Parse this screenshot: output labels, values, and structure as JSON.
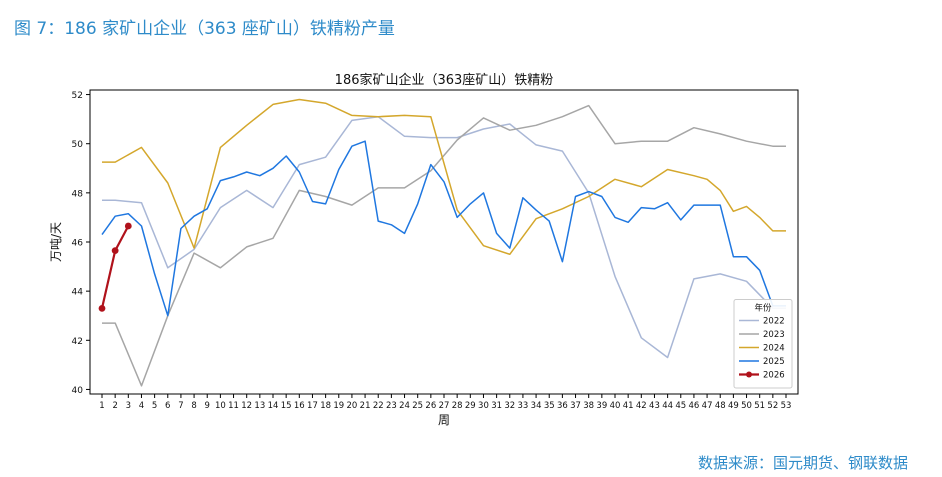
{
  "figure_title": "图 7：186 家矿山企业（363 座矿山）铁精粉产量",
  "source": "数据来源：国元期货、钢联数据",
  "chart_data": {
    "type": "line",
    "title": "186家矿山企业（363座矿山）铁精粉",
    "xlabel": "周",
    "ylabel": "万吨/天",
    "xlim": [
      1,
      53
    ],
    "ylim": [
      40,
      52
    ],
    "yticks": [
      40,
      42,
      44,
      46,
      48,
      50,
      52
    ],
    "xticks": [
      1,
      2,
      3,
      4,
      5,
      6,
      7,
      8,
      9,
      10,
      11,
      12,
      13,
      14,
      15,
      16,
      17,
      18,
      19,
      20,
      21,
      22,
      23,
      24,
      25,
      26,
      27,
      28,
      29,
      30,
      31,
      32,
      33,
      34,
      35,
      36,
      37,
      38,
      39,
      40,
      41,
      42,
      43,
      44,
      45,
      46,
      47,
      48,
      49,
      50,
      51,
      52,
      53
    ],
    "grid": false,
    "legend": {
      "title": "年份",
      "placement": "lower-right"
    },
    "series": [
      {
        "name": "2022",
        "color": "#a9b7d6",
        "marker": false,
        "x": [
          1,
          2,
          3,
          4,
          6,
          8,
          10,
          12,
          14,
          16,
          18,
          20,
          22,
          24,
          26,
          28,
          30,
          32,
          34,
          36,
          38,
          40,
          42,
          44,
          46,
          48,
          50,
          52,
          53
        ],
        "values": [
          47.7,
          47.7,
          47.65,
          47.6,
          44.95,
          45.7,
          47.4,
          48.1,
          47.4,
          49.15,
          49.45,
          50.95,
          51.1,
          50.3,
          50.25,
          50.25,
          50.6,
          50.8,
          49.95,
          49.7,
          48.0,
          44.6,
          42.1,
          41.3,
          44.5,
          44.7,
          44.4,
          43.3,
          43.3
        ]
      },
      {
        "name": "2023",
        "color": "#a6a6a6",
        "marker": false,
        "x": [
          1,
          2,
          4,
          6,
          8,
          10,
          12,
          14,
          16,
          18,
          20,
          22,
          24,
          26,
          28,
          30,
          32,
          34,
          36,
          38,
          40,
          42,
          44,
          46,
          48,
          50,
          52,
          53
        ],
        "values": [
          42.7,
          42.7,
          40.15,
          43.0,
          45.55,
          44.95,
          45.8,
          46.15,
          48.1,
          47.85,
          47.5,
          48.2,
          48.2,
          48.9,
          50.15,
          51.05,
          50.55,
          50.75,
          51.1,
          51.55,
          50.0,
          50.1,
          50.1,
          50.65,
          50.4,
          50.1,
          49.9,
          49.9
        ]
      },
      {
        "name": "2024",
        "color": "#d4a72c",
        "marker": false,
        "x": [
          1,
          2,
          4,
          6,
          8,
          10,
          12,
          14,
          16,
          18,
          20,
          22,
          24,
          26,
          28,
          30,
          32,
          34,
          36,
          38,
          40,
          42,
          44,
          46,
          47,
          48,
          49,
          50,
          51,
          52,
          53
        ],
        "values": [
          49.25,
          49.25,
          49.85,
          48.4,
          45.75,
          49.85,
          50.75,
          51.6,
          51.8,
          51.65,
          51.15,
          51.1,
          51.15,
          51.1,
          47.3,
          45.85,
          45.5,
          46.95,
          47.35,
          47.85,
          48.55,
          48.25,
          48.95,
          48.7,
          48.55,
          48.1,
          47.25,
          47.45,
          47.0,
          46.45,
          46.45
        ]
      },
      {
        "name": "2025",
        "color": "#1f77e0",
        "marker": false,
        "x": [
          1,
          2,
          3,
          4,
          5,
          6,
          7,
          8,
          9,
          10,
          11,
          12,
          13,
          14,
          15,
          16,
          17,
          18,
          19,
          20,
          21,
          22,
          23,
          24,
          25,
          26,
          27,
          28,
          29,
          30,
          31,
          32,
          33,
          34,
          35,
          36,
          37,
          38,
          39,
          40,
          41,
          42,
          43,
          44,
          45,
          46,
          47,
          48,
          49,
          50,
          51,
          52,
          53
        ],
        "values": [
          46.3,
          47.05,
          47.15,
          46.65,
          44.7,
          43.0,
          46.55,
          47.05,
          47.35,
          48.5,
          48.65,
          48.85,
          48.7,
          49.0,
          49.5,
          48.85,
          47.65,
          47.55,
          48.95,
          49.9,
          50.1,
          46.85,
          46.7,
          46.35,
          47.55,
          49.15,
          48.45,
          47.0,
          47.55,
          48.0,
          46.35,
          45.75,
          47.8,
          47.3,
          46.85,
          45.2,
          47.85,
          48.05,
          47.85,
          47.0,
          46.8,
          47.4,
          47.35,
          47.6,
          46.9,
          47.5,
          47.5,
          47.5,
          45.4,
          45.4,
          44.85,
          43.4,
          43.4
        ]
      },
      {
        "name": "2026",
        "color": "#b0121b",
        "marker": true,
        "x": [
          1,
          2,
          3
        ],
        "values": [
          43.3,
          45.65,
          46.65
        ]
      }
    ]
  }
}
